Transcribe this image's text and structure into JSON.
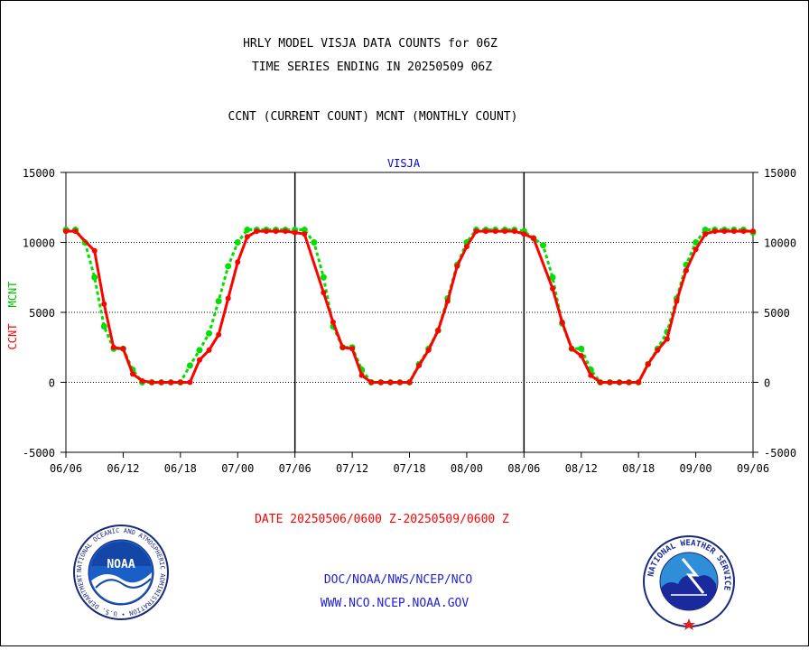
{
  "header": {
    "title_line1": "HRLY MODEL VISJA DATA COUNTS for 06Z",
    "title_line2": "TIME SERIES ENDING IN 20250509 06Z",
    "legend_line": "CCNT (CURRENT COUNT) MCNT (MONTHLY COUNT)"
  },
  "chart_data": {
    "type": "line",
    "title": "VISJA",
    "ylabel_left_ccnt": "CCNT",
    "ylabel_left_mcnt": "MCNT",
    "xlabel": "DATE 20250506/0600 Z-20250509/0600 Z",
    "ylim": [
      -5000,
      15000
    ],
    "yticks": [
      -5000,
      0,
      5000,
      10000,
      15000
    ],
    "xlim": [
      0,
      72
    ],
    "x_tick_positions": [
      0,
      6,
      12,
      18,
      24,
      30,
      36,
      42,
      48,
      54,
      60,
      66,
      72
    ],
    "x_tick_labels": [
      "06/06",
      "06/12",
      "06/18",
      "07/00",
      "07/06",
      "07/12",
      "07/18",
      "08/00",
      "08/06",
      "08/12",
      "08/18",
      "09/00",
      "09/06"
    ],
    "day_boundaries": [
      24,
      48
    ],
    "grid_y": [
      0,
      5000,
      10000,
      15000
    ],
    "colors": {
      "ccnt": "#ff0000",
      "mcnt": "#00e000",
      "title": "#0000cc",
      "date": "#ff0000"
    },
    "series": [
      {
        "name": "CCNT",
        "x": [
          0,
          1,
          3,
          4,
          5,
          6,
          7,
          8,
          9,
          10,
          11,
          12,
          13,
          14,
          15,
          16,
          17,
          18,
          19,
          20,
          21,
          22,
          23,
          24,
          25,
          27,
          28,
          29,
          30,
          31,
          32,
          33,
          34,
          35,
          36,
          37,
          38,
          39,
          40,
          41,
          42,
          43,
          44,
          45,
          46,
          47,
          48,
          49,
          51,
          52,
          53,
          54,
          55,
          56,
          57,
          58,
          59,
          60,
          61,
          62,
          63,
          64,
          65,
          66,
          67,
          68,
          69,
          70,
          71,
          72
        ],
        "y": [
          10800,
          10800,
          9400,
          5600,
          2500,
          2400,
          600,
          100,
          0,
          0,
          0,
          0,
          0,
          1600,
          2300,
          3400,
          6000,
          8600,
          10400,
          10800,
          10800,
          10800,
          10800,
          10700,
          10600,
          6400,
          4300,
          2500,
          2400,
          500,
          0,
          0,
          0,
          0,
          0,
          1200,
          2300,
          3700,
          5800,
          8300,
          9700,
          10800,
          10800,
          10800,
          10800,
          10800,
          10600,
          10300,
          6700,
          4300,
          2400,
          1900,
          500,
          0,
          0,
          0,
          0,
          0,
          1300,
          2300,
          3100,
          5800,
          8000,
          9500,
          10600,
          10800,
          10800,
          10800,
          10800,
          10800
        ]
      },
      {
        "name": "MCNT",
        "x": [
          0,
          1,
          2,
          3,
          4,
          5,
          6,
          7,
          8,
          9,
          10,
          11,
          12,
          13,
          14,
          15,
          16,
          17,
          18,
          19,
          20,
          21,
          22,
          23,
          24,
          25,
          26,
          27,
          28,
          29,
          30,
          31,
          32,
          33,
          34,
          35,
          36,
          37,
          38,
          39,
          40,
          41,
          42,
          43,
          44,
          45,
          46,
          47,
          48,
          49,
          50,
          51,
          52,
          53,
          54,
          55,
          56,
          57,
          58,
          59,
          60,
          61,
          62,
          63,
          64,
          65,
          66,
          67,
          68,
          69,
          70,
          71,
          72
        ],
        "y": [
          10900,
          10900,
          10000,
          7500,
          4000,
          2400,
          2400,
          900,
          0,
          0,
          0,
          0,
          0,
          1200,
          2300,
          3500,
          5800,
          8300,
          10000,
          10900,
          10900,
          10900,
          10900,
          10900,
          10900,
          10900,
          10000,
          7500,
          4000,
          2500,
          2500,
          900,
          0,
          0,
          0,
          0,
          0,
          1300,
          2400,
          3700,
          6000,
          8400,
          10000,
          10900,
          10900,
          10900,
          10900,
          10900,
          10800,
          10300,
          9800,
          7500,
          4200,
          2400,
          2400,
          900,
          0,
          0,
          0,
          0,
          0,
          1300,
          2400,
          3600,
          6000,
          8400,
          10000,
          10900,
          10900,
          10900,
          10900,
          10900,
          10700
        ]
      }
    ]
  },
  "footer": {
    "org_path": "DOC/NOAA/NWS/NCEP/NCO",
    "website": "WWW.NCO.NCEP.NOAA.GOV",
    "noaa_logo_text": "NOAA",
    "noaa_ring_text": "NATIONAL OCEANIC AND ATMOSPHERIC ADMINISTRATION • U.S. DEPARTMENT OF COMMERCE •",
    "nws_ring_text": "NATIONAL WEATHER SERVICE"
  }
}
